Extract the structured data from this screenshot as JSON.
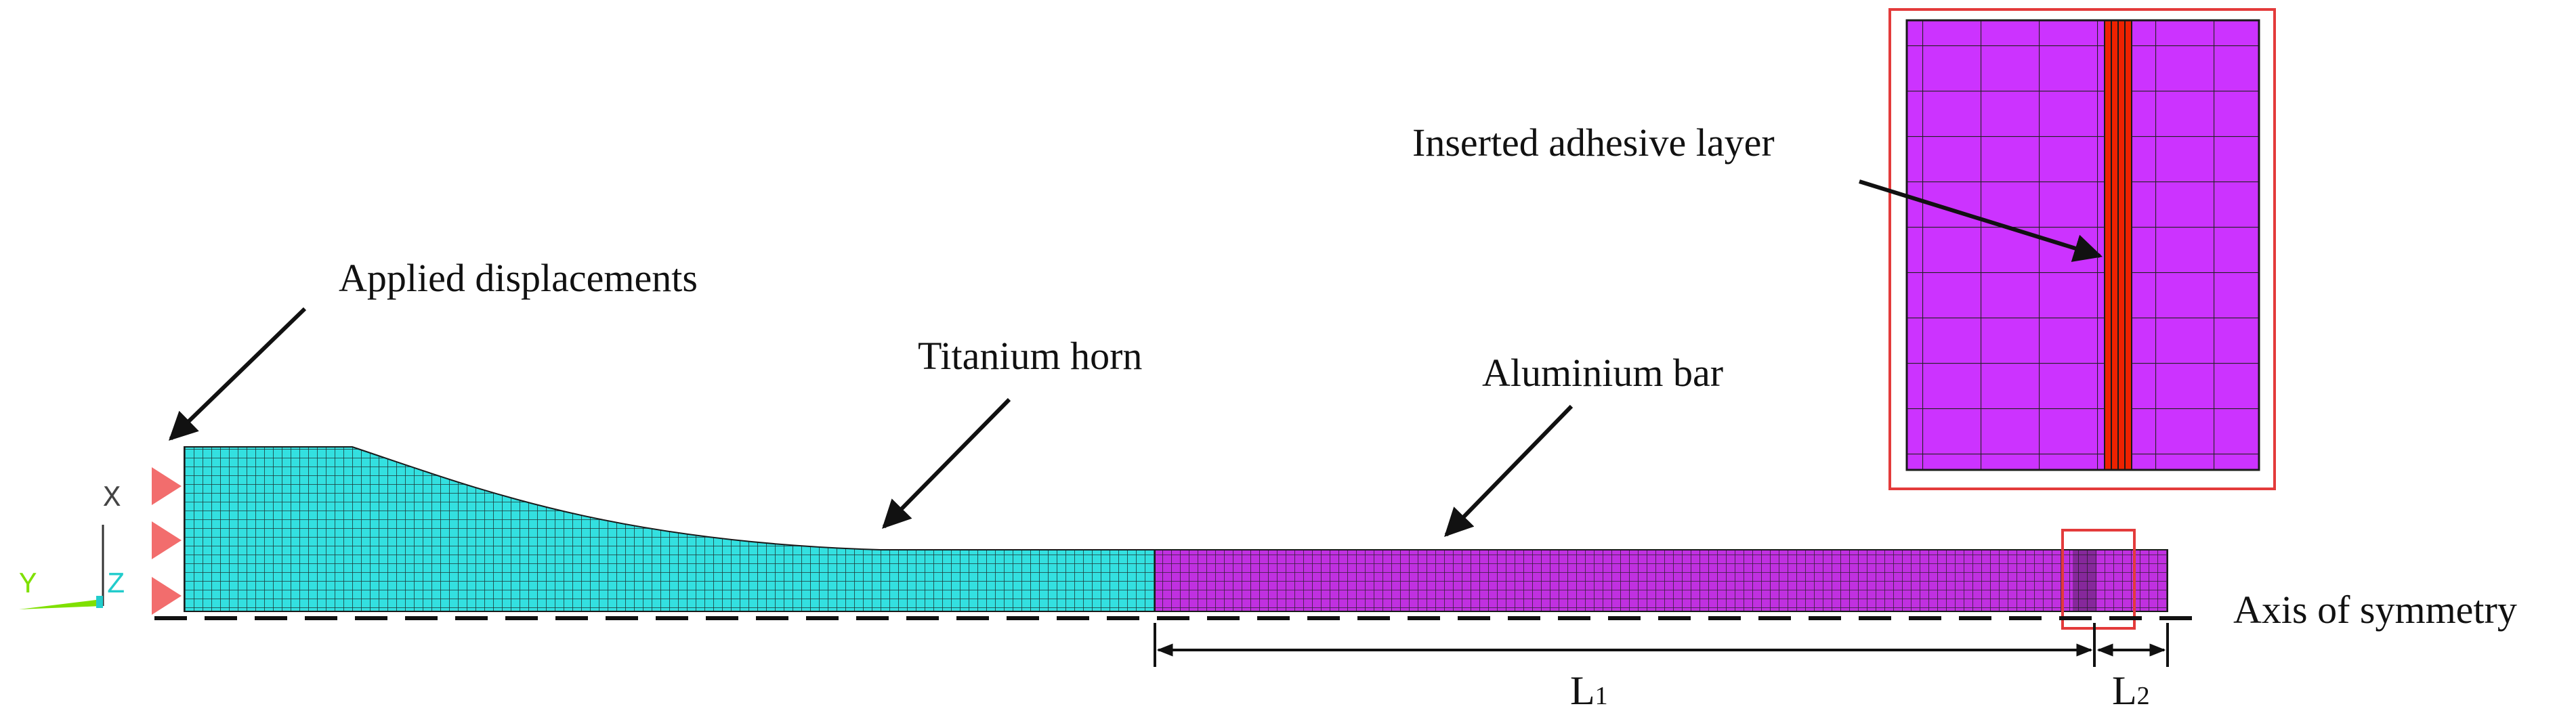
{
  "labels": {
    "applied_displacements": "Applied displacements",
    "titanium_horn": "Titanium horn",
    "aluminium_bar": "Aluminium bar",
    "inserted_adhesive_layer": "Inserted adhesive layer",
    "axis_of_symmetry": "Axis of symmetry",
    "l1_base": "L",
    "l1_sub": "1",
    "l2_base": "L",
    "l2_sub": "2"
  },
  "triad": {
    "x": "X",
    "y": "Y",
    "z": "Z"
  },
  "colors": {
    "titanium": "#33e0e0",
    "aluminium": "#c030e0",
    "inset_fill": "#cc33ff",
    "adhesive": "#ee2200",
    "frame": "#e33b3b",
    "mesh_line": "#1a1a1a",
    "arrow": "#111111",
    "triangle": "#f26d6d",
    "triad_x": "#444444",
    "triad_y": "#7fe000",
    "triad_z": "#22cccc"
  }
}
